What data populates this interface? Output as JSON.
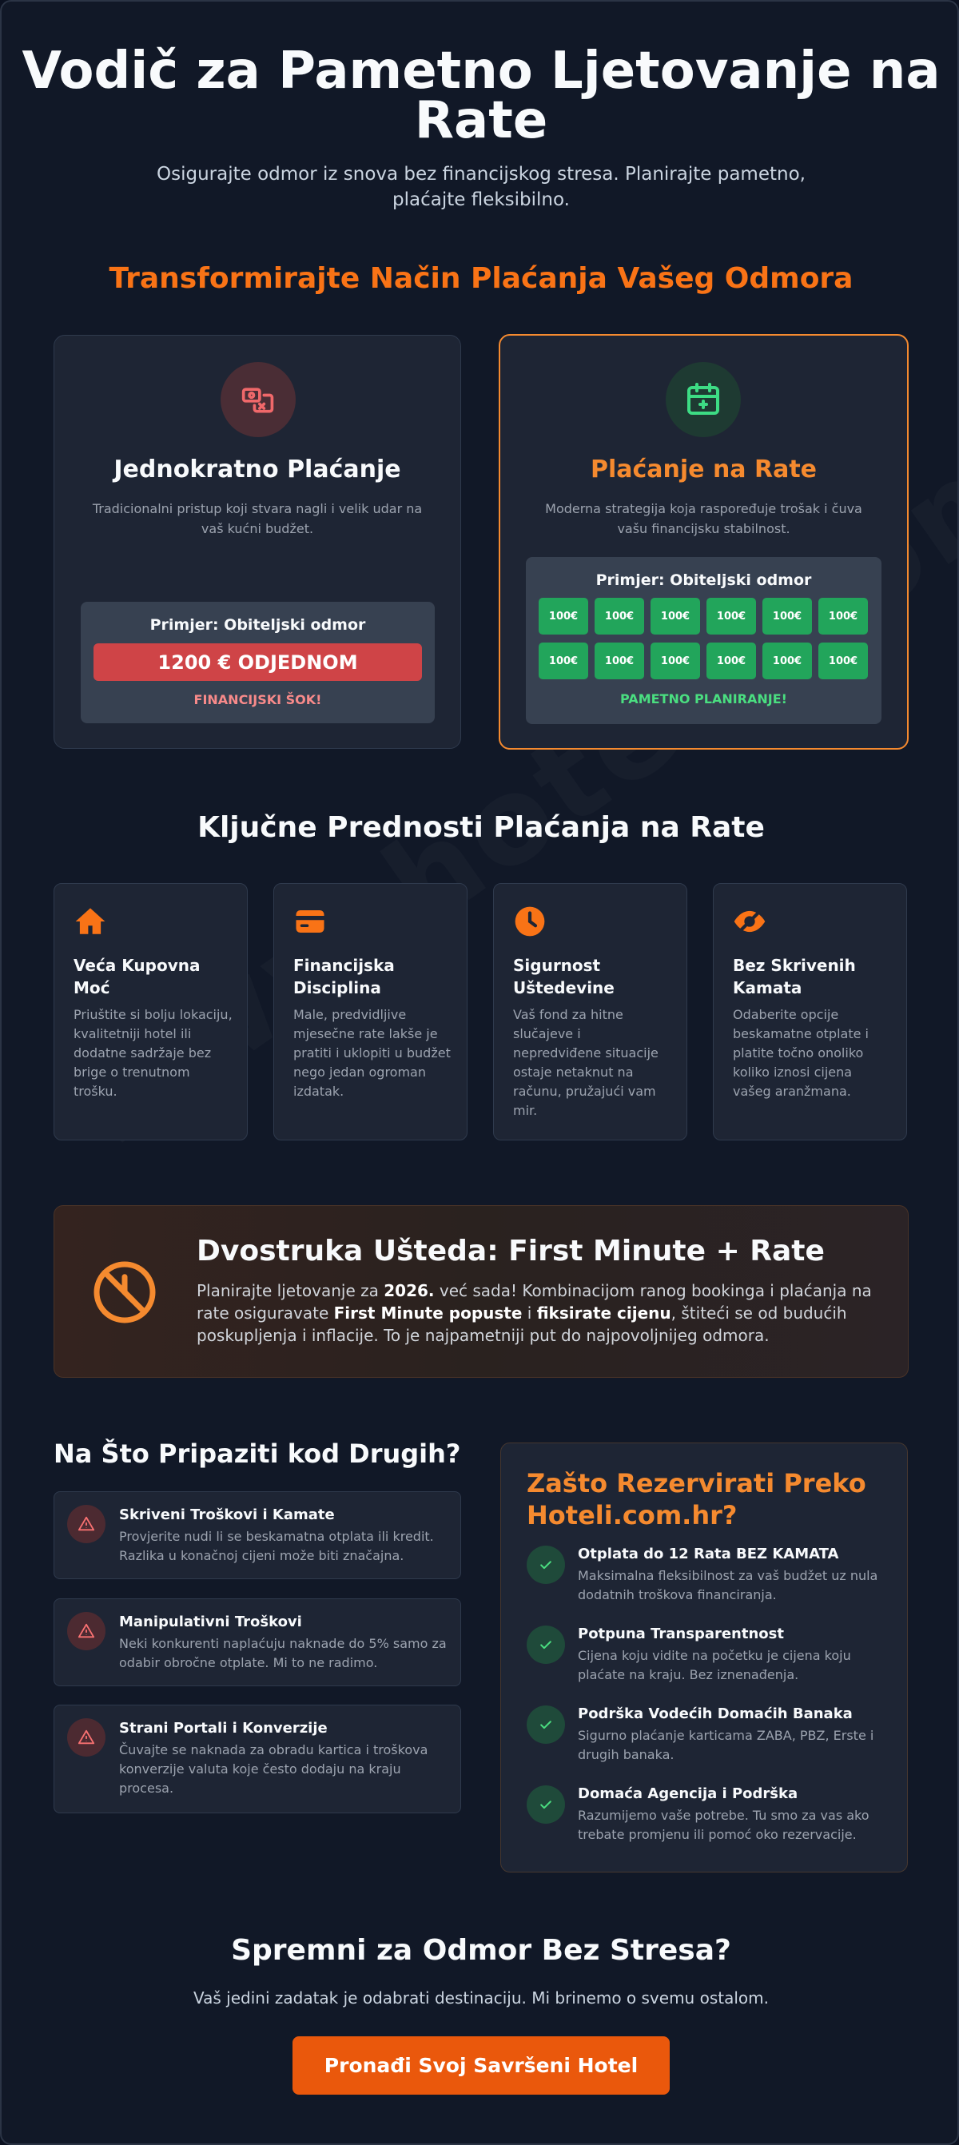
{
  "hero": {
    "title": "Vodič za Pametno Ljetovanje na Rate",
    "subtitle": "Osigurajte odmor iz snova bez financijskog stresa. Planirajte pametno, plaćajte fleksibilno.",
    "watermark": "www.hoteli.com.hr"
  },
  "comparison": {
    "heading": "Transformirajte Način Plaćanja Vašeg Odmora",
    "one_time": {
      "title": "Jednokratno Plaćanje",
      "description": "Tradicionalni pristup koji stvara nagli i velik udar na vaš kućni budžet.",
      "example_title": "Primjer: Obiteljski odmor",
      "amount": "1200 € ODJEDNOM",
      "footer": "FINANCIJSKI ŠOK!",
      "icon": "money-exchange-icon"
    },
    "installments": {
      "title": "Plaćanje na Rate",
      "description": "Moderna strategija koja raspoređuje trošak i čuva vašu financijsku stabilnost.",
      "example_title": "Primjer: Obiteljski odmor",
      "rates": [
        "100€",
        "100€",
        "100€",
        "100€",
        "100€",
        "100€",
        "100€",
        "100€",
        "100€",
        "100€",
        "100€",
        "100€"
      ],
      "footer": "PAMETNO PLANIRANJE!",
      "icon": "calendar-icon"
    }
  },
  "benefits": {
    "heading": "Ključne Prednosti Plaćanja na Rate",
    "items": [
      {
        "title": "Veća Kupovna Moć",
        "description": "Priuštite si bolju lokaciju, kvalitetniji hotel ili dodatne sadržaje bez brige o trenutnom trošku.",
        "icon": "home-icon"
      },
      {
        "title": "Financijska Disciplina",
        "description": "Male, predvidljive mjesečne rate lakše je pratiti i uklopiti u budžet nego jedan ogroman izdatak.",
        "icon": "wallet-icon"
      },
      {
        "title": "Sigurnost Uštedevine",
        "description": "Vaš fond za hitne slučajeve i nepredviđene situacije ostaje netaknut na računu, pružajući vam mir.",
        "icon": "clock-icon"
      },
      {
        "title": "Bez Skrivenih Kamata",
        "description": "Odaberite opcije beskamatne otplate i platite točno onoliko koliko iznosi cijena vašeg aranžmana.",
        "icon": "eye-slash-icon"
      }
    ]
  },
  "banner": {
    "title": "Dvostruka Ušteda: First Minute + Rate",
    "text_1": "Planirajte ljetovanje za ",
    "bold_1": "2026.",
    "text_2": " već sada! Kombinacijom ranog bookinga i plaćanja na rate osiguravate ",
    "bold_2": "First Minute popuste",
    "text_3": " i ",
    "bold_3": "fiksirate cijenu",
    "text_4": ", štiteći se od budućih poskupljenja i inflacije. To je najpametniji put do najpovoljnijeg odmora.",
    "icon": "clock-strike-icon"
  },
  "warnings": {
    "heading": "Na Što Pripaziti kod Drugih?",
    "items": [
      {
        "title": "Skriveni Troškovi i Kamate",
        "description": "Provjerite nudi li se beskamatna otplata ili kredit. Razlika u konačnoj cijeni može biti značajna."
      },
      {
        "title": "Manipulativni Troškovi",
        "description": "Neki konkurenti naplaćuju naknade do 5% samo za odabir obročne otplate. Mi to ne radimo."
      },
      {
        "title": "Strani Portali i Konverzije",
        "description": "Čuvajte se naknada za obradu kartica i troškova konverzije valuta koje često dodaju na kraju procesa."
      }
    ]
  },
  "why": {
    "heading": "Zašto Rezervirati Preko Hoteli.com.hr?",
    "items": [
      {
        "title": "Otplata do 12 Rata BEZ KAMATA",
        "description": "Maksimalna fleksibilnost za vaš budžet uz nula dodatnih troškova financiranja."
      },
      {
        "title": "Potpuna Transparentnost",
        "description": "Cijena koju vidite na početku je cijena koju plaćate na kraju. Bez iznenađenja."
      },
      {
        "title": "Podrška Vodećih Domaćih Banaka",
        "description": "Sigurno plaćanje karticama ZABA, PBZ, Erste i drugih banaka."
      },
      {
        "title": "Domaća Agencija i Podrška",
        "description": "Razumijemo vaše potrebe. Tu smo za vas ako trebate promjenu ili pomoć oko rezervacije."
      }
    ]
  },
  "cta": {
    "heading": "Spremni za Odmor Bez Stresa?",
    "subtitle": "Vaš jedini zadatak je odabrati destinaciju. Mi brinemo o svemu ostalom.",
    "button": "Pronađi Svoj Savršeni Hotel"
  },
  "colors": {
    "accent": "#f97316",
    "danger": "#cf4447",
    "success": "#22a55b",
    "background": "#111827"
  }
}
